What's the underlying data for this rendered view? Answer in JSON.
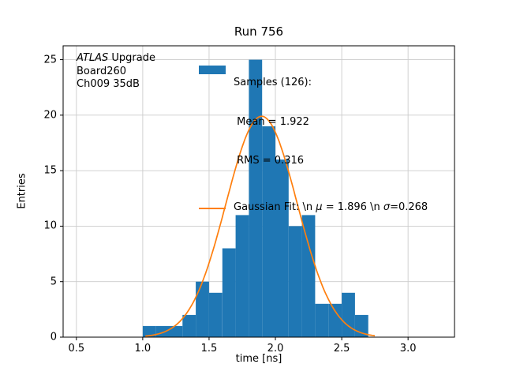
{
  "chart_data": {
    "type": "bar",
    "subtype": "histogram_with_gaussian_fit",
    "title": "Run 756",
    "xlabel": "time [ns]",
    "ylabel": "Entries",
    "xlim": [
      0.4,
      3.35
    ],
    "ylim": [
      0,
      26.25
    ],
    "xticks": [
      0.5,
      1.0,
      1.5,
      2.0,
      2.5,
      3.0
    ],
    "xtick_labels": [
      "0.5",
      "1.0",
      "1.5",
      "2.0",
      "2.5",
      "3.0"
    ],
    "yticks": [
      0,
      5,
      10,
      15,
      20,
      25
    ],
    "ytick_labels": [
      "0",
      "5",
      "10",
      "15",
      "20",
      "25"
    ],
    "grid": true,
    "bar_color": "#1f77b4",
    "fit_color": "#ff7f0e",
    "bin_edges": [
      1.0,
      1.1,
      1.2,
      1.3,
      1.4,
      1.5,
      1.6,
      1.7,
      1.8,
      1.9,
      2.0,
      2.1,
      2.2,
      2.3,
      2.4,
      2.5,
      2.6,
      2.7
    ],
    "counts": [
      1,
      1,
      1,
      2,
      5,
      4,
      8,
      11,
      25,
      19,
      16,
      10,
      11,
      3,
      3,
      4,
      2
    ],
    "n_samples": 126,
    "mean": 1.922,
    "rms": 0.316,
    "fit": {
      "mu": 1.896,
      "sigma": 0.268,
      "amplitude": 19.9,
      "x_range": [
        1.02,
        2.75
      ]
    }
  },
  "annotation": {
    "line1_italic": "ATLAS",
    "line1_rest": " Upgrade",
    "line2": "Board260",
    "line3": "Ch009 35dB"
  },
  "legend": {
    "samples_line1": "Samples (126):",
    "samples_line2": " Mean = 1.922",
    "samples_line3": " RMS = 0.316",
    "fit_prefix": "Gaussian Fit: \\n ",
    "fit_mu": "μ",
    "fit_mid": " = 1.896 \\n ",
    "fit_sigma": "σ",
    "fit_suffix": "=0.268"
  }
}
